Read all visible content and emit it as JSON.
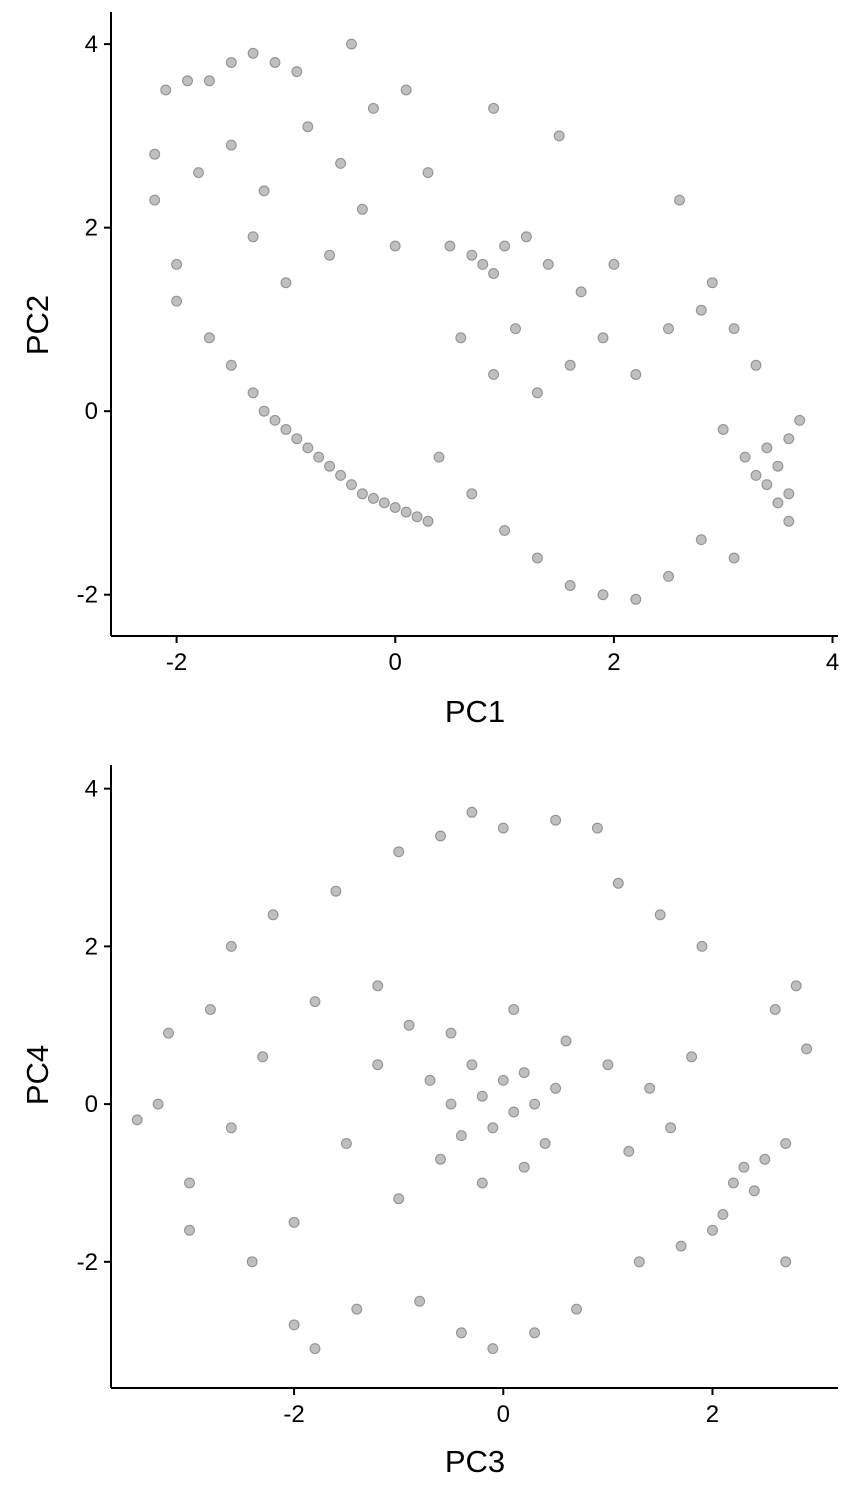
{
  "chart_data": [
    {
      "type": "scatter",
      "title": "",
      "xlabel": "PC1",
      "ylabel": "PC2",
      "xlim": [
        -2.6,
        4.05
      ],
      "ylim": [
        -2.45,
        4.35
      ],
      "xticks": [
        "-2",
        "0",
        "2",
        "4"
      ],
      "yticks": [
        "-2",
        "0",
        "2",
        "4"
      ],
      "xtick_values": [
        -2,
        0,
        2,
        4
      ],
      "ytick_values": [
        -2,
        0,
        2,
        4
      ],
      "grid": false,
      "legend": "none",
      "marker_color": "#000000",
      "marker_alpha": 0.25,
      "point_count_note": "thousands of semi-transparent points",
      "series": [
        {
          "points": [
            [
              -2.2,
              2.8
            ],
            [
              -2.1,
              3.5
            ],
            [
              -1.9,
              3.6
            ],
            [
              -1.7,
              3.6
            ],
            [
              -1.5,
              3.8
            ],
            [
              -1.3,
              3.9
            ],
            [
              -1.1,
              3.8
            ],
            [
              -0.9,
              3.7
            ],
            [
              -0.4,
              4.0
            ],
            [
              -2.2,
              2.3
            ],
            [
              -2.0,
              1.6
            ],
            [
              -1.8,
              2.6
            ],
            [
              -1.5,
              2.9
            ],
            [
              -1.2,
              2.4
            ],
            [
              -0.8,
              3.1
            ],
            [
              -0.5,
              2.7
            ],
            [
              -0.2,
              3.3
            ],
            [
              0.1,
              3.5
            ],
            [
              -2.0,
              1.2
            ],
            [
              -1.7,
              0.8
            ],
            [
              -1.5,
              0.5
            ],
            [
              -1.3,
              1.9
            ],
            [
              -1.0,
              1.4
            ],
            [
              -0.6,
              1.7
            ],
            [
              -0.3,
              2.2
            ],
            [
              0.0,
              1.8
            ],
            [
              0.3,
              2.6
            ],
            [
              -1.3,
              0.2
            ],
            [
              -1.1,
              -0.1
            ],
            [
              -0.9,
              -0.3
            ],
            [
              -0.7,
              -0.5
            ],
            [
              -0.5,
              -0.7
            ],
            [
              -0.3,
              -0.9
            ],
            [
              -0.1,
              -1.0
            ],
            [
              0.1,
              -1.1
            ],
            [
              0.3,
              -1.2
            ],
            [
              -1.2,
              0.0
            ],
            [
              -1.0,
              -0.2
            ],
            [
              -0.8,
              -0.4
            ],
            [
              -0.6,
              -0.6
            ],
            [
              -0.4,
              -0.8
            ],
            [
              -0.2,
              -0.95
            ],
            [
              0.0,
              -1.05
            ],
            [
              0.2,
              -1.15
            ],
            [
              0.5,
              1.8
            ],
            [
              0.7,
              1.7
            ],
            [
              0.8,
              1.6
            ],
            [
              0.9,
              1.5
            ],
            [
              1.0,
              1.8
            ],
            [
              1.2,
              1.9
            ],
            [
              1.4,
              1.6
            ],
            [
              1.7,
              1.3
            ],
            [
              2.0,
              1.6
            ],
            [
              0.6,
              0.8
            ],
            [
              0.9,
              0.4
            ],
            [
              1.1,
              0.9
            ],
            [
              1.3,
              0.2
            ],
            [
              1.6,
              0.5
            ],
            [
              1.9,
              0.8
            ],
            [
              2.2,
              0.4
            ],
            [
              2.5,
              0.9
            ],
            [
              2.8,
              1.1
            ],
            [
              0.4,
              -0.5
            ],
            [
              0.7,
              -0.9
            ],
            [
              1.0,
              -1.3
            ],
            [
              1.3,
              -1.6
            ],
            [
              1.6,
              -1.9
            ],
            [
              1.9,
              -2.0
            ],
            [
              2.2,
              -2.05
            ],
            [
              2.5,
              -1.8
            ],
            [
              2.8,
              -1.4
            ],
            [
              3.0,
              -0.2
            ],
            [
              3.2,
              -0.5
            ],
            [
              3.3,
              -0.7
            ],
            [
              3.4,
              -0.8
            ],
            [
              3.5,
              -0.6
            ],
            [
              3.6,
              -0.9
            ],
            [
              3.5,
              -1.0
            ],
            [
              3.4,
              -0.4
            ],
            [
              3.6,
              -0.3
            ],
            [
              2.6,
              2.3
            ],
            [
              2.9,
              1.4
            ],
            [
              3.1,
              0.9
            ],
            [
              3.3,
              0.5
            ],
            [
              3.7,
              -0.1
            ],
            [
              3.6,
              -1.2
            ],
            [
              3.1,
              -1.6
            ],
            [
              0.9,
              3.3
            ],
            [
              1.5,
              3.0
            ]
          ]
        }
      ]
    },
    {
      "type": "scatter",
      "title": "",
      "xlabel": "PC3",
      "ylabel": "PC4",
      "xlim": [
        -3.75,
        3.2
      ],
      "ylim": [
        -3.6,
        4.3
      ],
      "xticks": [
        "-2",
        "0",
        "2"
      ],
      "yticks": [
        "-2",
        "0",
        "2",
        "4"
      ],
      "xtick_values": [
        -2,
        0,
        2
      ],
      "ytick_values": [
        -2,
        0,
        2,
        4
      ],
      "grid": false,
      "legend": "none",
      "marker_color": "#000000",
      "marker_alpha": 0.25,
      "point_count_note": "thousands of semi-transparent points",
      "series": [
        {
          "points": [
            [
              -3.5,
              -0.2
            ],
            [
              -3.2,
              0.9
            ],
            [
              -3.0,
              -1.0
            ],
            [
              -2.8,
              1.2
            ],
            [
              -2.6,
              2.0
            ],
            [
              -2.4,
              -2.0
            ],
            [
              -2.2,
              2.4
            ],
            [
              -2.0,
              -2.8
            ],
            [
              -1.8,
              -3.1
            ],
            [
              -1.6,
              2.7
            ],
            [
              -1.4,
              -2.6
            ],
            [
              -1.2,
              1.5
            ],
            [
              -1.0,
              3.2
            ],
            [
              -0.8,
              -2.5
            ],
            [
              -0.6,
              3.4
            ],
            [
              -0.4,
              -2.9
            ],
            [
              -0.3,
              3.7
            ],
            [
              -0.1,
              -3.1
            ],
            [
              0.0,
              3.5
            ],
            [
              0.3,
              -2.9
            ],
            [
              0.5,
              3.6
            ],
            [
              0.7,
              -2.6
            ],
            [
              0.9,
              3.5
            ],
            [
              1.1,
              2.8
            ],
            [
              1.3,
              -2.0
            ],
            [
              1.5,
              2.4
            ],
            [
              1.7,
              -1.8
            ],
            [
              1.9,
              2.0
            ],
            [
              2.1,
              -1.4
            ],
            [
              2.2,
              -1.0
            ],
            [
              2.3,
              -0.8
            ],
            [
              2.4,
              -1.1
            ],
            [
              2.5,
              -0.7
            ],
            [
              2.6,
              1.2
            ],
            [
              2.8,
              1.5
            ],
            [
              2.7,
              -0.5
            ],
            [
              -0.7,
              0.3
            ],
            [
              -0.5,
              0.0
            ],
            [
              -0.4,
              -0.4
            ],
            [
              -0.3,
              0.5
            ],
            [
              -0.2,
              0.1
            ],
            [
              -0.1,
              -0.3
            ],
            [
              0.0,
              0.3
            ],
            [
              0.1,
              -0.1
            ],
            [
              0.2,
              0.4
            ],
            [
              0.3,
              0.0
            ],
            [
              0.4,
              -0.5
            ],
            [
              0.5,
              0.2
            ],
            [
              -0.6,
              -0.7
            ],
            [
              -0.2,
              -1.0
            ],
            [
              0.2,
              -0.8
            ],
            [
              0.6,
              0.8
            ],
            [
              -0.5,
              0.9
            ],
            [
              0.1,
              1.2
            ],
            [
              -1.5,
              -0.5
            ],
            [
              -1.2,
              0.5
            ],
            [
              -1.0,
              -1.2
            ],
            [
              -0.9,
              1.0
            ],
            [
              1.0,
              0.5
            ],
            [
              1.2,
              -0.6
            ],
            [
              1.4,
              0.2
            ],
            [
              1.6,
              -0.3
            ],
            [
              1.8,
              0.6
            ],
            [
              -2.6,
              -0.3
            ],
            [
              -2.3,
              0.6
            ],
            [
              -2.0,
              -1.5
            ],
            [
              -1.8,
              1.3
            ],
            [
              -3.0,
              -1.6
            ],
            [
              -3.3,
              0.0
            ],
            [
              2.0,
              -1.6
            ],
            [
              2.9,
              0.7
            ],
            [
              2.7,
              -2.0
            ]
          ]
        }
      ]
    }
  ]
}
